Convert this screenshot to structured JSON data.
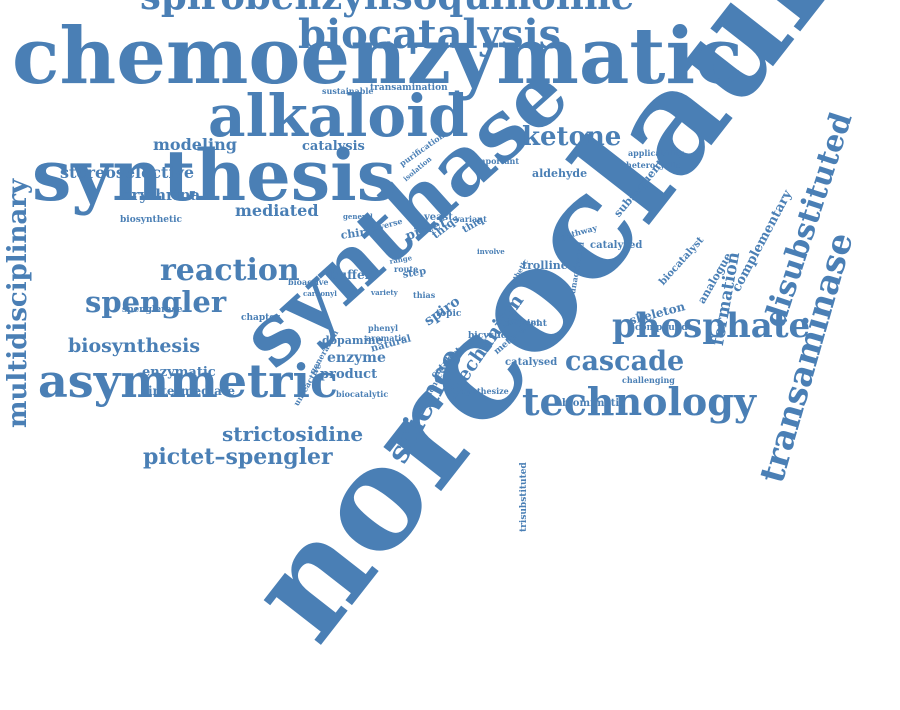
{
  "color": "#4a7fb5",
  "words": [
    "norcoclaurine",
    "synthase",
    "chemoenzymatic",
    "synthesis",
    "alkaloid",
    "asymmetric",
    "spirobenzylisoquinoline",
    "biocatalysis",
    "technology",
    "phosphate",
    "transaminase",
    "disubstituted",
    "multidisciplinary",
    "reaction",
    "spengler",
    "science",
    "cascade",
    "pictet–spengler",
    "strictosidine",
    "ketone",
    "biosynthesis",
    "modeling",
    "stereoselective",
    "erythrina",
    "mediated",
    "mechanism",
    "formation",
    "complementary",
    "enzymatic",
    "intermediate",
    "enzyme",
    "product",
    "dopamine",
    "catalysis",
    "aldehyde",
    "spiro",
    "pictet",
    "thiqs",
    "trolline",
    "skeleton",
    "compound",
    "analogue",
    "biocatalyst",
    "buffer",
    "chiral",
    "yeast",
    "variant",
    "catalyzed",
    "biomimetic",
    "catalysed",
    "trisubstituted",
    "subsequent",
    "heterocyclic",
    "applicability",
    "pathway",
    "natural",
    "bicyclic",
    "efficient",
    "step",
    "purification",
    "transamination",
    "sustainable",
    "biosynthetic",
    "spenglerase",
    "bioactive",
    "carbonyl",
    "chapter",
    "generation",
    "biocatalytic",
    "unreactive",
    "important",
    "isolation",
    "diverse",
    "general",
    "topic",
    "route",
    "thias",
    "variety",
    "catalyst",
    "monocyclic",
    "method",
    "synthesize",
    "solvent",
    "unactivated",
    "synthetic",
    "challenging",
    "thiq",
    "phenyl",
    "aromatic",
    "involve",
    "range"
  ]
}
